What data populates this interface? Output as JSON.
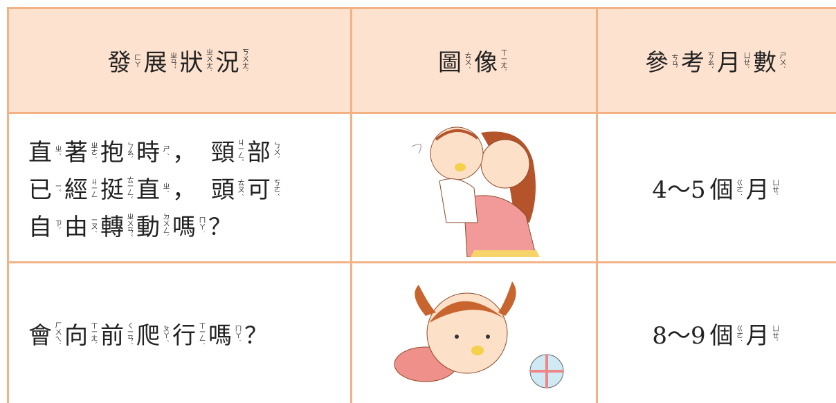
{
  "table": {
    "header": [
      [
        [
          "發",
          "ㄈㄚ"
        ],
        [
          "展",
          "ㄓㄢˇ"
        ],
        [
          "狀",
          "ㄓㄨㄤˋ"
        ],
        [
          "況",
          "ㄎㄨㄤˋ"
        ]
      ],
      [
        [
          "圖",
          "ㄊㄨˊ"
        ],
        [
          "像",
          "ㄒㄧㄤˋ"
        ]
      ],
      [
        [
          "參",
          "ㄘㄢ"
        ],
        [
          "考",
          "ㄎㄠˇ"
        ],
        [
          "月",
          "ㄩㄝˋ"
        ],
        [
          "數",
          "ㄕㄨˋ"
        ]
      ]
    ],
    "rows": [
      {
        "condition": [
          [
            [
              "直",
              "ㄓˊ"
            ],
            [
              "著",
              "ㄓㄜˊ"
            ],
            [
              "抱",
              "ㄅㄠˋ"
            ],
            [
              "時",
              "ㄕˊ"
            ],
            [
              "，"
            ],
            [
              "頸",
              "ㄐㄧㄥˇ"
            ],
            [
              "部",
              "ㄅㄨˋ"
            ]
          ],
          [
            [
              "已",
              "ㄧˇ"
            ],
            [
              "經",
              "ㄐㄧㄥ"
            ],
            [
              "挺",
              "ㄊㄧㄥˇ"
            ],
            [
              "直",
              "ㄓˊ"
            ],
            [
              "，"
            ],
            [
              "頭",
              "ㄊㄡˊ"
            ],
            [
              "可",
              "ㄎㄜˇ"
            ]
          ],
          [
            [
              "自",
              "ㄗˋ"
            ],
            [
              "由",
              "ㄧㄡˊ"
            ],
            [
              "轉",
              "ㄓㄨㄢˇ"
            ],
            [
              "動",
              "ㄉㄨㄥˋ"
            ],
            [
              "嗎",
              "ㄇㄚ˙"
            ],
            [
              "？"
            ]
          ]
        ],
        "age": [
          [
            [
              "4～5"
            ],
            [
              "個",
              "ㄍㄜ˙"
            ],
            [
              "月",
              "ㄩㄝˋ"
            ]
          ]
        ]
      },
      {
        "condition": [
          [
            [
              "會",
              "ㄏㄨㄟˋ"
            ],
            [
              "向",
              "ㄒㄧㄤˋ"
            ],
            [
              "前",
              "ㄑㄧㄢˊ"
            ],
            [
              "爬",
              "ㄆㄚˊ"
            ],
            [
              "行",
              "ㄒㄧㄥˊ"
            ],
            [
              "嗎",
              "ㄇㄚ˙"
            ],
            [
              "？"
            ]
          ]
        ],
        "age": [
          [
            [
              "8～9"
            ],
            [
              "個",
              "ㄍㄜ˙"
            ],
            [
              "月",
              "ㄩㄝˋ"
            ]
          ]
        ]
      }
    ]
  }
}
